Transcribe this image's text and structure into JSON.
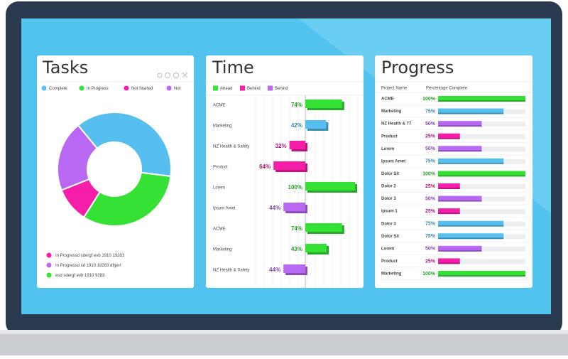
{
  "chart_data": [
    {
      "type": "pie",
      "title": "Tasks",
      "categories": [
        "Complete",
        "In Progress",
        "Not Started",
        "Not"
      ],
      "values": [
        38,
        32,
        10,
        20
      ],
      "colors": [
        "#56bff0",
        "#35e135",
        "#f61ea8",
        "#b868f2"
      ],
      "notes": [
        {
          "text": "In Progressd sdergf  evb  1910   19283",
          "color": "#f61ea8"
        },
        {
          "text": "In Progressd sd 1910  19283 dfgerr",
          "color": "#b868f2"
        },
        {
          "text": "esd sdergf  evb  1910 9283",
          "color": "#35e135"
        }
      ]
    },
    {
      "type": "bar",
      "title": "Time",
      "categories": [
        "ACME",
        "Marketing",
        "NZ Health & Safety",
        "Product",
        "Lorem",
        "Ipsum Amet",
        "ACME",
        "Marketing",
        "NZ Health & Safety"
      ],
      "xlim": [
        0,
        100
      ],
      "series": [
        {
          "name": "Ahead",
          "color": "#35e135",
          "side": "right",
          "values": [
            74,
            null,
            null,
            null,
            100,
            null,
            74,
            43,
            null
          ],
          "value_labels": [
            "74%",
            null,
            null,
            null,
            "100%",
            null,
            "74%",
            "43%",
            null
          ]
        },
        {
          "name": "Behind",
          "color": "#f61ea8",
          "side": "left",
          "values": [
            null,
            null,
            32,
            64,
            null,
            null,
            null,
            null,
            null
          ],
          "value_labels": [
            null,
            null,
            "32%",
            "64%",
            null,
            null,
            null,
            null,
            null
          ]
        },
        {
          "name": "Behind",
          "color": "#b868f2",
          "side": "left",
          "values": [
            null,
            null,
            null,
            null,
            null,
            44,
            null,
            null,
            44
          ],
          "value_labels": [
            null,
            null,
            null,
            null,
            null,
            "44%",
            null,
            null,
            "44%"
          ]
        },
        {
          "color": "#56bff0",
          "side": "right",
          "values": [
            null,
            42,
            null,
            null,
            null,
            null,
            null,
            null,
            null
          ],
          "value_labels": [
            null,
            "42%",
            null,
            null,
            null,
            null,
            null,
            null,
            null
          ]
        }
      ]
    },
    {
      "type": "bar",
      "title": "Progress",
      "columns": [
        "Project Name",
        "Percentage Complete"
      ],
      "categories": [
        "ACME",
        "Marketing",
        "NZ Health & 77",
        "Product",
        "Lorem",
        "Ipsum Amet",
        "Dolor Sit",
        "Dolor 2",
        "Dolor 3",
        "Ipsum 1",
        "Dolor 3",
        "Dolor Sit",
        "Lorem",
        "Product",
        "Marketing"
      ],
      "values": [
        100,
        75,
        50,
        25,
        50,
        75,
        100,
        25,
        50,
        25,
        75,
        75,
        50,
        25,
        100
      ],
      "value_labels": [
        "100%",
        "75%",
        "50%",
        "25%",
        "50%",
        "75%",
        "100%",
        "25%",
        "50%",
        "25%",
        "75%",
        "75%",
        "50%",
        "25%",
        "100%"
      ],
      "colors": [
        "#35e135",
        "#56bff0",
        "#b868f2",
        "#f61ea8",
        "#b868f2",
        "#56bff0",
        "#35e135",
        "#f61ea8",
        "#b868f2",
        "#f61ea8",
        "#56bff0",
        "#56bff0",
        "#b868f2",
        "#f61ea8",
        "#35e135"
      ],
      "xlim": [
        0,
        100
      ]
    }
  ]
}
